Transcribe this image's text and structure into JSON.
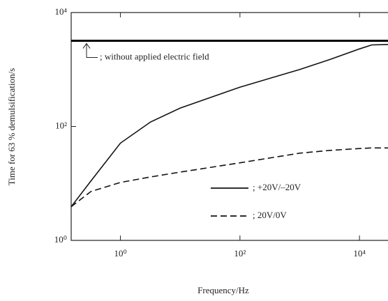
{
  "chart_data": {
    "type": "line",
    "x_label": "Frequency/Hz",
    "y_label": "Time for 63 % demulsification/s",
    "x": [
      0.15,
      0.32,
      1,
      3.2,
      10,
      100,
      1000,
      3200,
      10000,
      16000,
      30000
    ],
    "series": [
      {
        "name": "; +20V/–20V",
        "color": "#111111",
        "dash": "solid",
        "values": [
          3.9,
          11,
          51,
          120,
          210,
          490,
          1000,
          1500,
          2300,
          2700,
          2750
        ]
      },
      {
        "name": ";  20V/0V",
        "color": "#111111",
        "dash": "dashed",
        "values": [
          3.9,
          7.2,
          10.4,
          13,
          15.8,
          23,
          34,
          38,
          41,
          42,
          42
        ]
      }
    ],
    "reference_line": {
      "value": 3200,
      "label": "; without applied electric field",
      "color": "#000000"
    },
    "xlim": [
      0.15,
      30000
    ],
    "ylim": [
      1,
      10000
    ],
    "xticks": [
      {
        "value": 1,
        "label": "10⁰"
      },
      {
        "value": 100,
        "label": "10²"
      },
      {
        "value": 10000,
        "label": "10⁴"
      }
    ],
    "yticks": [
      {
        "value": 1,
        "label": "10⁰"
      },
      {
        "value": 100,
        "label": "10²"
      },
      {
        "value": 10000,
        "label": "10⁴"
      }
    ],
    "xlog": true,
    "ylog": true,
    "grid": false,
    "legend_position": "right"
  }
}
